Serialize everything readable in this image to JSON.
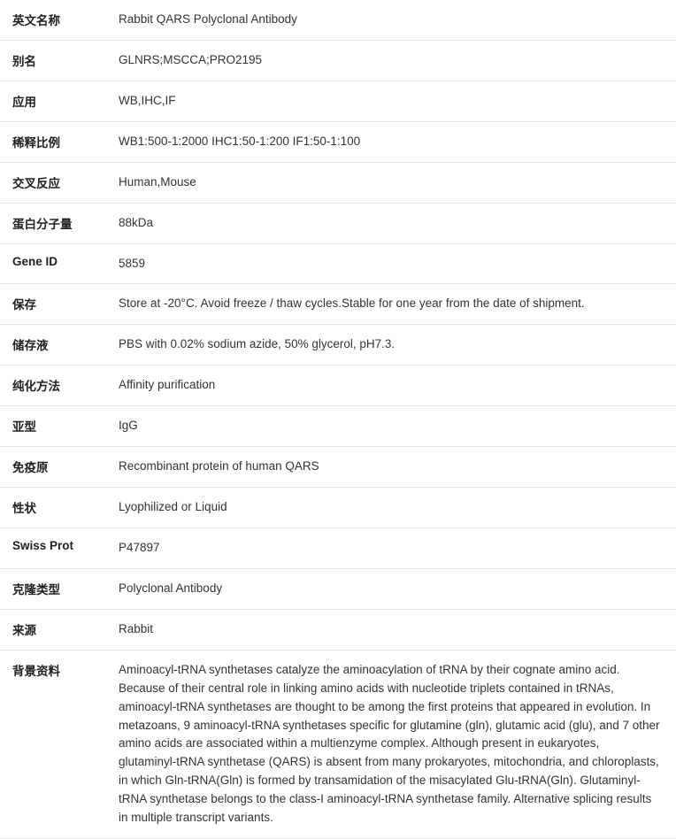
{
  "rows": [
    {
      "label": "英文名称",
      "value": "Rabbit QARS Polyclonal Antibody"
    },
    {
      "label": "别名",
      "value": "GLNRS;MSCCA;PRO2195"
    },
    {
      "label": "应用",
      "value": "WB,IHC,IF"
    },
    {
      "label": "稀释比例",
      "value": "WB1:500-1:2000 IHC1:50-1:200 IF1:50-1:100"
    },
    {
      "label": "交叉反应",
      "value": "Human,Mouse"
    },
    {
      "label": "蛋白分子量",
      "value": "88kDa"
    },
    {
      "label": "Gene ID",
      "value": "5859"
    },
    {
      "label": "保存",
      "value": "Store at -20°C. Avoid freeze / thaw cycles.Stable for one year from the date of shipment."
    },
    {
      "label": "储存液",
      "value": "PBS with 0.02% sodium azide, 50% glycerol, pH7.3."
    },
    {
      "label": "纯化方法",
      "value": "Affinity purification"
    },
    {
      "label": "亚型",
      "value": "IgG"
    },
    {
      "label": "免疫原",
      "value": "Recombinant protein of human QARS"
    },
    {
      "label": "性状",
      "value": "Lyophilized or Liquid"
    },
    {
      "label": "Swiss Prot",
      "value": "P47897"
    },
    {
      "label": "克隆类型",
      "value": "Polyclonal Antibody"
    },
    {
      "label": "来源",
      "value": "Rabbit"
    },
    {
      "label": "背景资料",
      "value": "Aminoacyl-tRNA synthetases catalyze the aminoacylation of tRNA by their cognate amino acid. Because of their central role in linking amino acids with nucleotide triplets contained in tRNAs, aminoacyl-tRNA synthetases are thought to be among the first proteins that appeared in evolution. In metazoans, 9 aminoacyl-tRNA synthetases specific for glutamine (gln), glutamic acid (glu), and 7 other amino acids are associated within a multienzyme complex. Although present in eukaryotes, glutaminyl-tRNA synthetase (QARS) is absent from many prokaryotes, mitochondria, and chloroplasts, in which Gln-tRNA(Gln) is formed by transamidation of the misacylated Glu-tRNA(Gln). Glutaminyl-tRNA synthetase belongs to the class-I aminoacyl-tRNA synthetase family. Alternative splicing results in multiple transcript variants."
    }
  ]
}
